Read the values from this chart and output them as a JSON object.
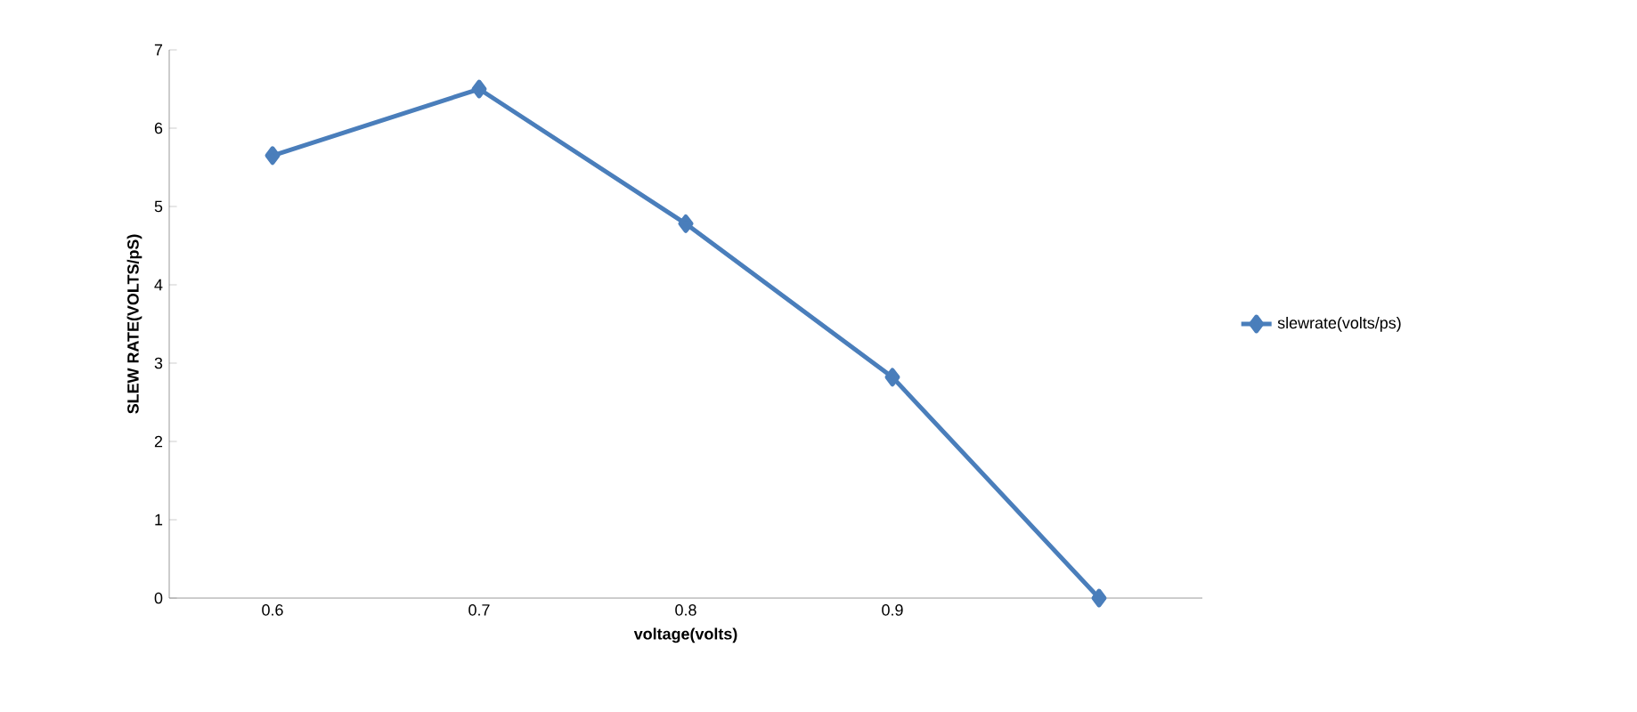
{
  "chart_data": {
    "type": "line",
    "xlabel": "voltage(volts)",
    "ylabel": "SLEW RATE(VOLTS/pS)",
    "categories": [
      "0.6",
      "0.7",
      "0.8",
      "0.9",
      null
    ],
    "series": [
      {
        "name": "slewrate(volts/ps)",
        "color": "#4a7ebb",
        "values": [
          5.65,
          6.5,
          4.78,
          2.82,
          0
        ]
      }
    ],
    "ylim": [
      0,
      7
    ],
    "yticks": [
      0,
      1,
      2,
      3,
      4,
      5,
      6,
      7
    ],
    "grid": false,
    "legend": "right",
    "marker": "diamond",
    "line_style": "solid"
  }
}
